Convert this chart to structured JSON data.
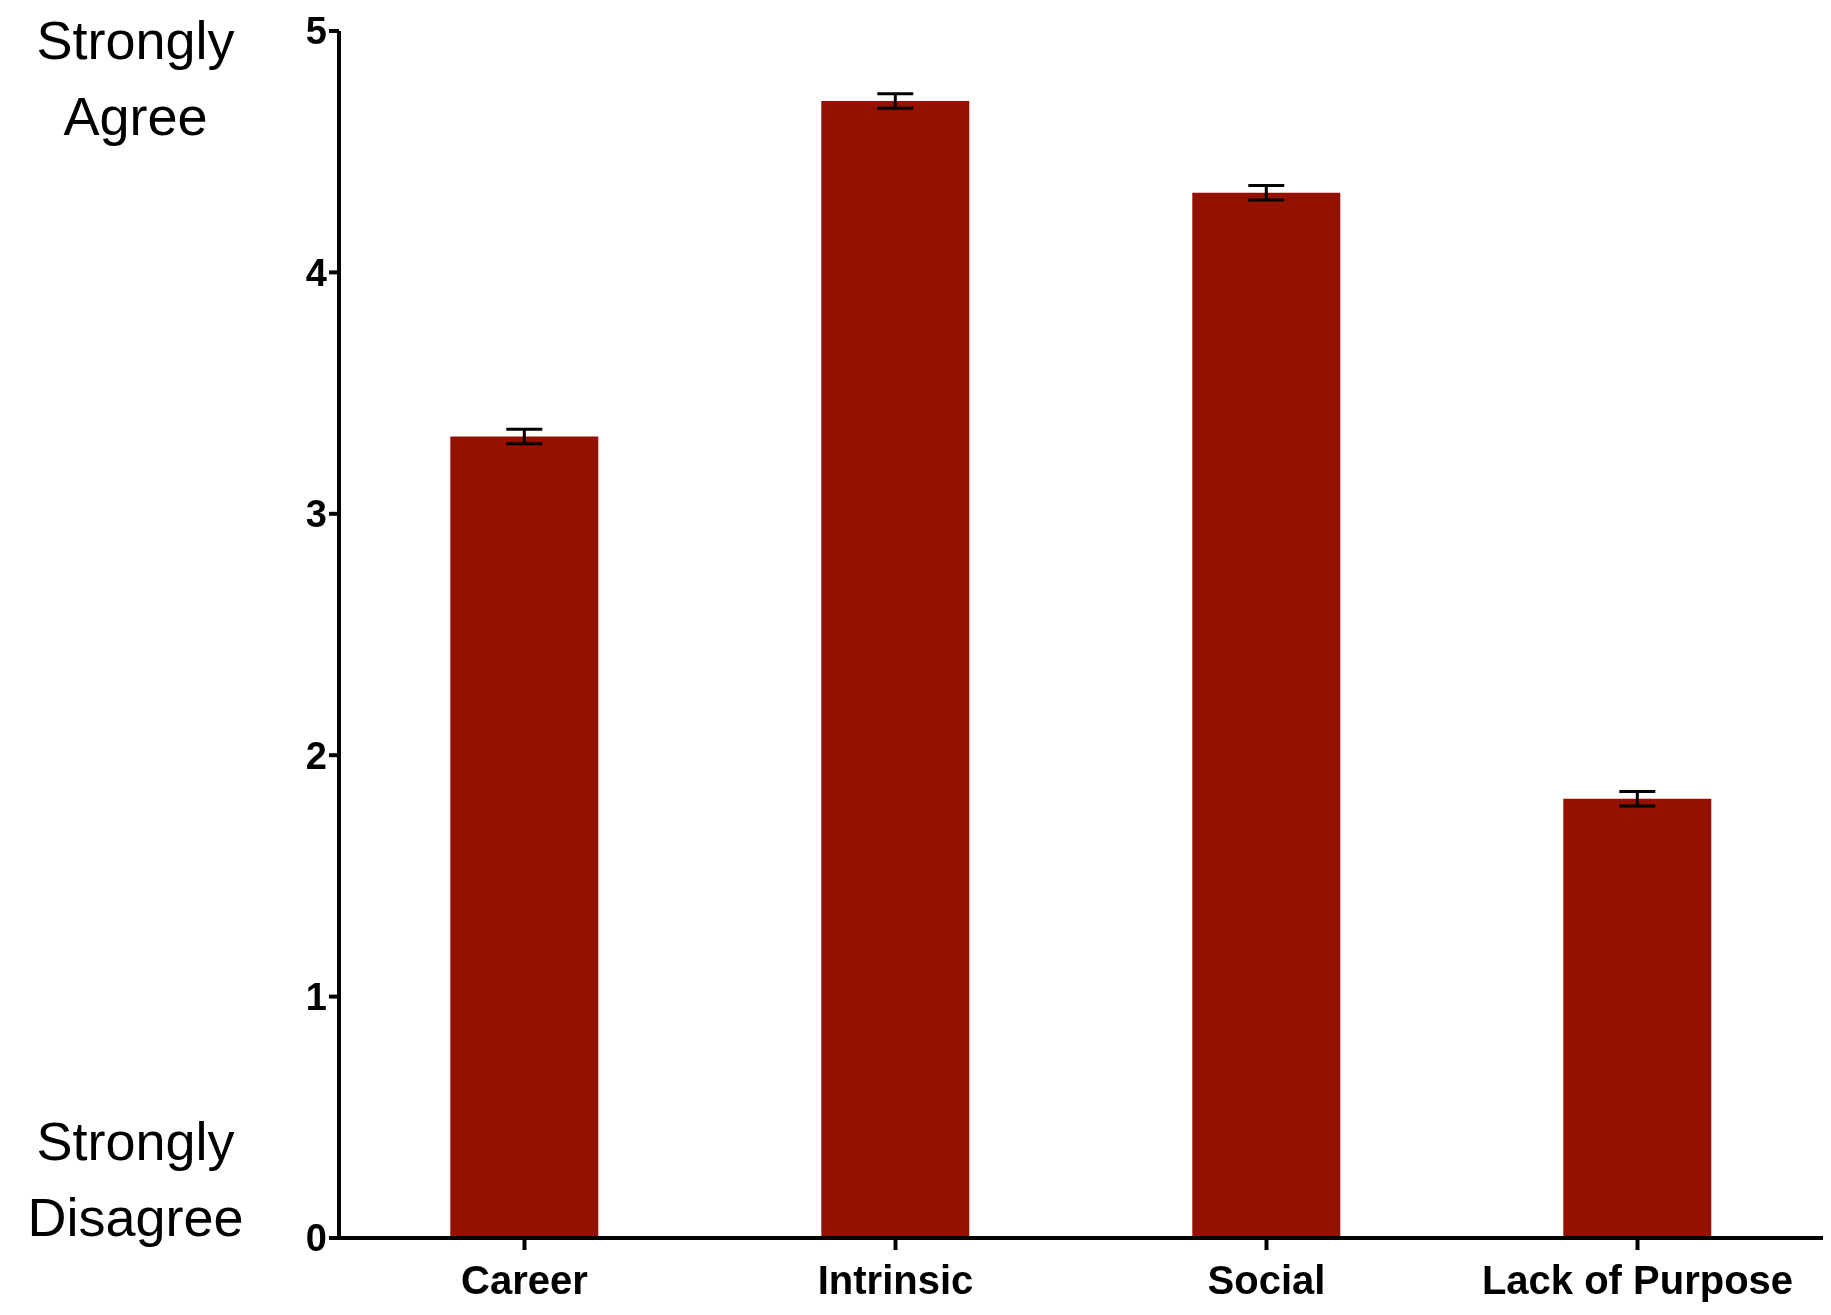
{
  "chart_data": {
    "type": "bar",
    "categories": [
      "Career",
      "Intrinsic",
      "Social",
      "Lack of Purpose"
    ],
    "values": [
      3.32,
      4.71,
      4.33,
      1.82
    ],
    "errors": [
      0.03,
      0.03,
      0.03,
      0.03
    ],
    "color": "#941100",
    "ylim": [
      0,
      5
    ],
    "yticks": [
      0,
      1,
      2,
      3,
      4,
      5
    ],
    "grid": false,
    "annotations": [
      "Strongly Agree",
      "Strongly Disagree"
    ]
  }
}
